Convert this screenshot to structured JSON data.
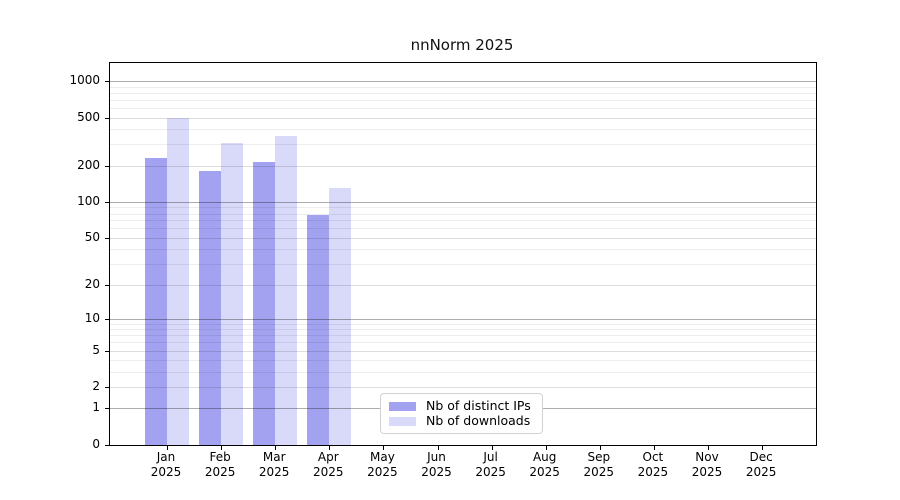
{
  "chart_data": {
    "type": "bar",
    "title": "nnNorm 2025",
    "categories": [
      "Jan",
      "Feb",
      "Mar",
      "Apr",
      "May",
      "Jun",
      "Jul",
      "Aug",
      "Sep",
      "Oct",
      "Nov",
      "Dec"
    ],
    "year_label": "2025",
    "series": [
      {
        "name": "Nb of distinct IPs",
        "key": "distinct-ips",
        "color": "#a2a2f0",
        "values": [
          230,
          180,
          215,
          78,
          0,
          0,
          0,
          0,
          0,
          0,
          0,
          0
        ]
      },
      {
        "name": "Nb of downloads",
        "key": "downloads",
        "color": "#d9d9f9",
        "values": [
          500,
          310,
          355,
          130,
          0,
          0,
          0,
          0,
          0,
          0,
          0,
          0
        ]
      }
    ],
    "xlabel": "",
    "ylabel": "",
    "yscale": "log10(value+1)",
    "yticks": [
      0,
      1,
      2,
      5,
      10,
      20,
      50,
      100,
      200,
      500,
      1000
    ],
    "ylim": [
      0,
      1400
    ],
    "grid": true,
    "legend_position": "lower-center-left",
    "axis_color": "#000000",
    "grid_major_color": "#b3b3b3",
    "grid_minor_color": "#ececec"
  }
}
